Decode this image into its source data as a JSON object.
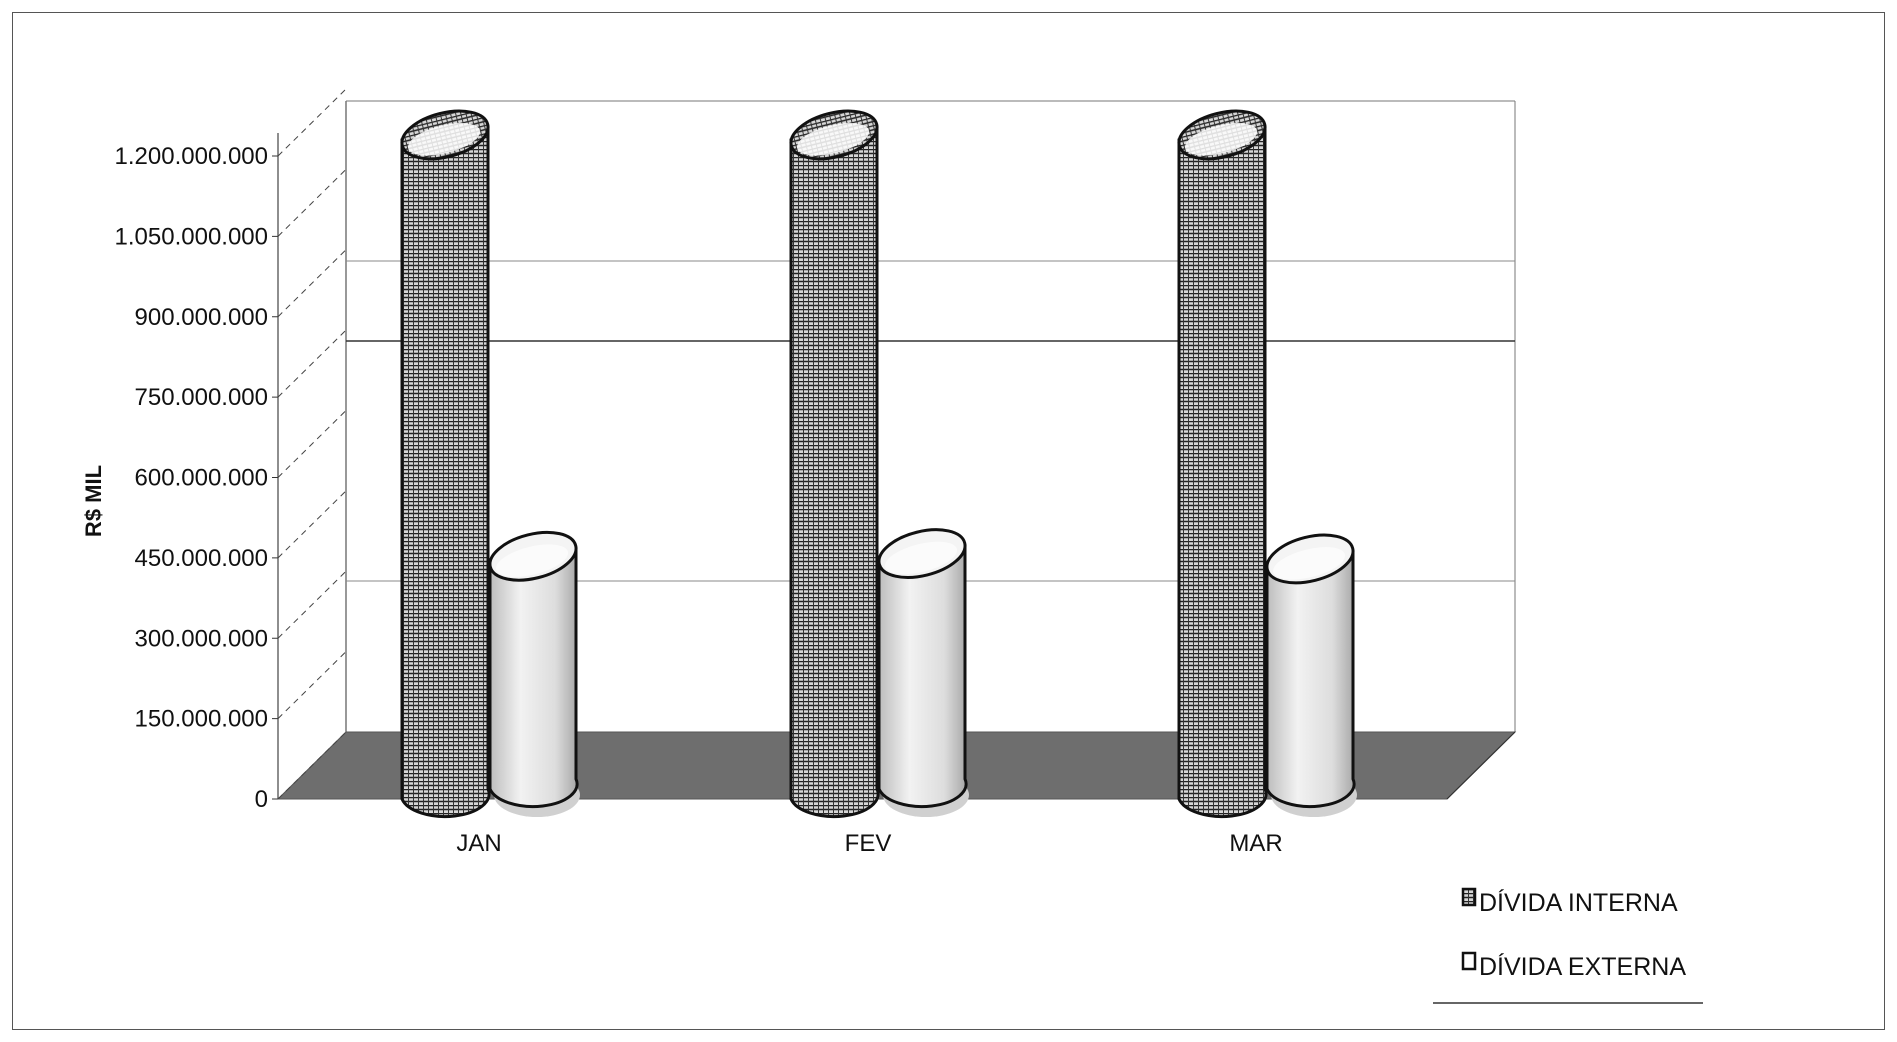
{
  "chart_data": {
    "type": "bar",
    "style": "3d-cylinder",
    "title": "",
    "xlabel": "",
    "ylabel": "R$ MIL",
    "ylim": [
      0,
      1200000000
    ],
    "y_ticks": [
      {
        "value": 0,
        "label": "0"
      },
      {
        "value": 150000000,
        "label": "150.000.000"
      },
      {
        "value": 300000000,
        "label": "300.000.000"
      },
      {
        "value": 450000000,
        "label": "450.000.000"
      },
      {
        "value": 600000000,
        "label": "600.000.000"
      },
      {
        "value": 750000000,
        "label": "750.000.000"
      },
      {
        "value": 900000000,
        "label": "900.000.000"
      },
      {
        "value": 1050000000,
        "label": "1.050.000.000"
      },
      {
        "value": 1200000000,
        "label": "1.200.000.000"
      }
    ],
    "categories": [
      "JAN",
      "FEV",
      "MAR"
    ],
    "series": [
      {
        "name": "DÍVIDA INTERNA",
        "values": [
          1230000000,
          1230000000,
          1230000000
        ],
        "pattern": "hatched-grid"
      },
      {
        "name": "DÍVIDA EXTERNA",
        "values": [
          425000000,
          430000000,
          420000000
        ],
        "pattern": "light-gray"
      }
    ],
    "grid": true,
    "legend_position": "bottom-right",
    "colors": {
      "floor": "#6e6e6e",
      "wall_line": "#444444",
      "interna_fill": "#c8c8c8",
      "externa_fill": "#e4e4e4",
      "outline": "#111111"
    }
  }
}
